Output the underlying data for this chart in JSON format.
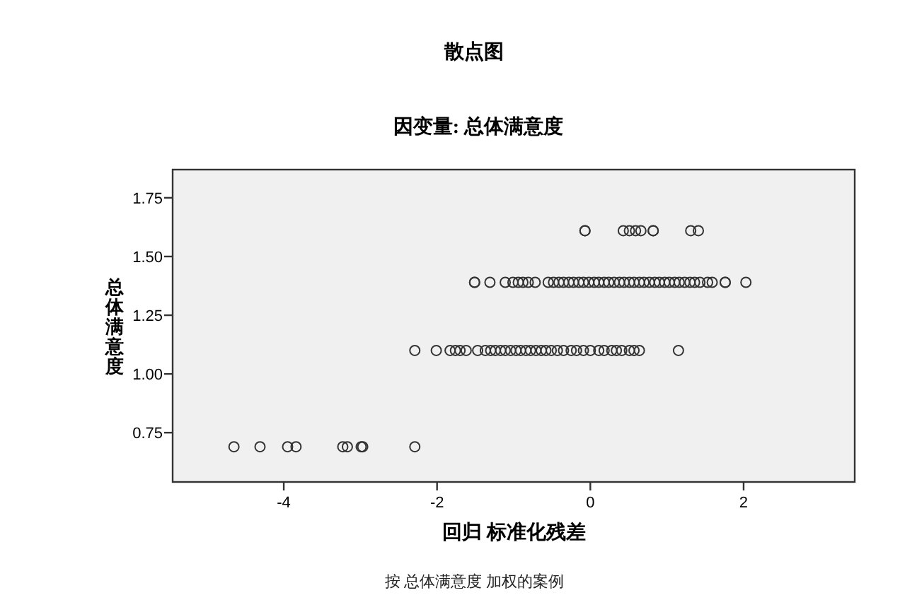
{
  "chart_data": {
    "type": "scatter",
    "title": "散点图",
    "subtitle": "因变量: 总体满意度",
    "xlabel": "回归 标准化残差",
    "ylabel": "总体满意度",
    "annotations": [
      "按 总体满意度 加权的案例"
    ],
    "series": [
      {
        "color": "#333333",
        "x": [
          -4.65,
          -4.31,
          -3.95,
          -3.84,
          -3.23,
          -3.17,
          -2.99,
          -2.97,
          -2.29,
          -2.29,
          -2.01,
          -1.83,
          -1.76,
          -1.7,
          -1.62,
          -1.47,
          -1.37,
          -1.3,
          -1.24,
          -1.17,
          -1.11,
          -1.04,
          -0.97,
          -0.91,
          -0.84,
          -0.78,
          -0.71,
          -0.64,
          -0.58,
          -0.51,
          -0.43,
          -0.35,
          -0.25,
          -0.18,
          -0.09,
          0.0,
          0.11,
          0.18,
          0.28,
          0.34,
          0.41,
          0.51,
          0.57,
          0.64,
          1.15,
          -1.51,
          -1.51,
          -1.31,
          -1.11,
          -1.01,
          -0.94,
          -0.88,
          -0.81,
          -0.72,
          -0.55,
          -0.48,
          -0.41,
          -0.35,
          -0.28,
          -0.22,
          -0.15,
          -0.09,
          -0.02,
          0.05,
          0.11,
          0.18,
          0.24,
          0.31,
          0.38,
          0.44,
          0.51,
          0.57,
          0.64,
          0.7,
          0.77,
          0.84,
          0.9,
          0.97,
          1.03,
          1.1,
          1.16,
          1.23,
          1.3,
          1.36,
          1.43,
          1.53,
          1.59,
          1.76,
          1.76,
          2.03,
          -0.07,
          -0.07,
          0.43,
          0.51,
          0.59,
          0.66,
          0.82,
          0.82,
          1.31,
          1.41
        ],
        "values": [
          0.69,
          0.69,
          0.69,
          0.69,
          0.69,
          0.69,
          0.69,
          0.69,
          0.69,
          1.1,
          1.1,
          1.1,
          1.1,
          1.1,
          1.1,
          1.1,
          1.1,
          1.1,
          1.1,
          1.1,
          1.1,
          1.1,
          1.1,
          1.1,
          1.1,
          1.1,
          1.1,
          1.1,
          1.1,
          1.1,
          1.1,
          1.1,
          1.1,
          1.1,
          1.1,
          1.1,
          1.1,
          1.1,
          1.1,
          1.1,
          1.1,
          1.1,
          1.1,
          1.1,
          1.1,
          1.39,
          1.39,
          1.39,
          1.39,
          1.39,
          1.39,
          1.39,
          1.39,
          1.39,
          1.39,
          1.39,
          1.39,
          1.39,
          1.39,
          1.39,
          1.39,
          1.39,
          1.39,
          1.39,
          1.39,
          1.39,
          1.39,
          1.39,
          1.39,
          1.39,
          1.39,
          1.39,
          1.39,
          1.39,
          1.39,
          1.39,
          1.39,
          1.39,
          1.39,
          1.39,
          1.39,
          1.39,
          1.39,
          1.39,
          1.39,
          1.39,
          1.39,
          1.39,
          1.39,
          1.39,
          1.61,
          1.61,
          1.61,
          1.61,
          1.61,
          1.61,
          1.61,
          1.61,
          1.61,
          1.61
        ]
      }
    ],
    "xlim": [
      -5.45,
      3.45
    ],
    "ylim": [
      0.54,
      1.87
    ],
    "xticks": [
      -4,
      -2,
      0,
      2
    ],
    "yticks": [
      {
        "value": 0.75,
        "label": "0.75"
      },
      {
        "value": 1.0,
        "label": "1.00"
      },
      {
        "value": 1.25,
        "label": "1.25"
      },
      {
        "value": 1.5,
        "label": "1.50"
      },
      {
        "value": 1.75,
        "label": "1.75"
      }
    ],
    "marker": "circle"
  }
}
